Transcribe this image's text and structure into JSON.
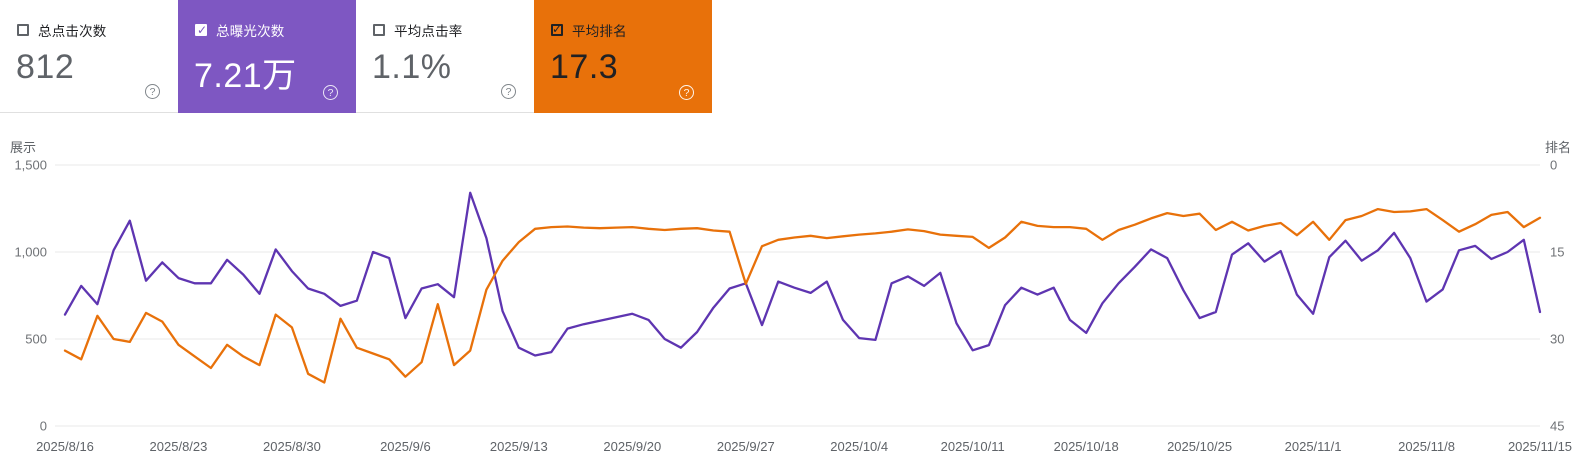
{
  "cards": [
    {
      "label": "总点击次数",
      "value": "812",
      "checked": false,
      "theme": "white"
    },
    {
      "label": "总曝光次数",
      "value": "7.21万",
      "checked": true,
      "theme": "purple",
      "color": "#7e57c2"
    },
    {
      "label": "平均点击率",
      "value": "1.1%",
      "checked": false,
      "theme": "white"
    },
    {
      "label": "平均排名",
      "value": "17.3",
      "checked": true,
      "theme": "orange",
      "color": "#e8710a"
    }
  ],
  "help_glyph": "?",
  "chart_data": {
    "type": "line",
    "title": "",
    "left_axis": {
      "title": "展示",
      "ticks": [
        "1,500",
        "1,000",
        "500",
        "0"
      ],
      "range": [
        0,
        1500
      ]
    },
    "right_axis": {
      "title": "排名",
      "ticks": [
        "0",
        "15",
        "30",
        "45"
      ],
      "range": [
        0,
        45
      ],
      "inverted": true
    },
    "grid": true,
    "legend_position": "none",
    "x_tick_labels": [
      "2025/8/16",
      "2025/8/23",
      "2025/8/30",
      "2025/9/6",
      "2025/9/13",
      "2025/9/20",
      "2025/9/27",
      "2025/10/4",
      "2025/10/11",
      "2025/10/18",
      "2025/10/25",
      "2025/11/1",
      "2025/11/8",
      "2025/11/15"
    ],
    "dates": [
      "2025/8/16",
      "2025/8/17",
      "2025/8/18",
      "2025/8/19",
      "2025/8/20",
      "2025/8/21",
      "2025/8/22",
      "2025/8/23",
      "2025/8/24",
      "2025/8/25",
      "2025/8/26",
      "2025/8/27",
      "2025/8/28",
      "2025/8/29",
      "2025/8/30",
      "2025/8/31",
      "2025/9/1",
      "2025/9/2",
      "2025/9/3",
      "2025/9/4",
      "2025/9/5",
      "2025/9/6",
      "2025/9/7",
      "2025/9/8",
      "2025/9/9",
      "2025/9/10",
      "2025/9/11",
      "2025/9/12",
      "2025/9/13",
      "2025/9/14",
      "2025/9/15",
      "2025/9/16",
      "2025/9/17",
      "2025/9/18",
      "2025/9/19",
      "2025/9/20",
      "2025/9/21",
      "2025/9/22",
      "2025/9/23",
      "2025/9/24",
      "2025/9/25",
      "2025/9/26",
      "2025/9/27",
      "2025/9/28",
      "2025/9/29",
      "2025/9/30",
      "2025/10/1",
      "2025/10/2",
      "2025/10/3",
      "2025/10/4",
      "2025/10/5",
      "2025/10/6",
      "2025/10/7",
      "2025/10/8",
      "2025/10/9",
      "2025/10/10",
      "2025/10/11",
      "2025/10/12",
      "2025/10/13",
      "2025/10/14",
      "2025/10/15",
      "2025/10/16",
      "2025/10/17",
      "2025/10/18",
      "2025/10/19",
      "2025/10/20",
      "2025/10/21",
      "2025/10/22",
      "2025/10/23",
      "2025/10/24",
      "2025/10/25",
      "2025/10/26",
      "2025/10/27",
      "2025/10/28",
      "2025/10/29",
      "2025/10/30",
      "2025/10/31",
      "2025/11/1",
      "2025/11/2",
      "2025/11/3",
      "2025/11/4",
      "2025/11/5",
      "2025/11/6",
      "2025/11/7",
      "2025/11/8",
      "2025/11/9",
      "2025/11/10",
      "2025/11/11",
      "2025/11/12",
      "2025/11/13",
      "2025/11/14",
      "2025/11/15"
    ],
    "series": [
      {
        "name": "总曝光次数",
        "axis": "left",
        "color": "#5e35b1",
        "values": [
          640,
          805,
          700,
          1010,
          1180,
          835,
          940,
          850,
          820,
          820,
          955,
          870,
          760,
          1015,
          890,
          790,
          760,
          690,
          720,
          1000,
          965,
          620,
          790,
          815,
          740,
          1340,
          1080,
          660,
          450,
          405,
          425,
          560,
          585,
          605,
          625,
          645,
          610,
          500,
          450,
          540,
          680,
          790,
          820,
          580,
          830,
          795,
          765,
          830,
          610,
          505,
          495,
          820,
          860,
          805,
          880,
          590,
          435,
          465,
          695,
          795,
          755,
          795,
          610,
          535,
          705,
          820,
          915,
          1015,
          965,
          780,
          620,
          655,
          985,
          1050,
          945,
          1005,
          755,
          645,
          970,
          1065,
          950,
          1010,
          1110,
          965,
          715,
          785,
          1010,
          1035,
          960,
          1000,
          1070,
          655
        ]
      },
      {
        "name": "平均排名",
        "axis": "right",
        "color": "#e8710a",
        "values": [
          32,
          33.5,
          26,
          30,
          30.5,
          25.5,
          27,
          31,
          33,
          35,
          31,
          33,
          34.5,
          25.8,
          28,
          36,
          37.5,
          26.5,
          31.5,
          32.5,
          33.5,
          36.5,
          34,
          24,
          34.5,
          32,
          21.5,
          16.5,
          13.3,
          11,
          10.7,
          10.6,
          10.8,
          10.9,
          10.8,
          10.7,
          11,
          11.2,
          11,
          10.9,
          11.3,
          11.5,
          20.5,
          14,
          12.9,
          12.5,
          12.2,
          12.6,
          12.3,
          12,
          11.8,
          11.5,
          11.1,
          11.4,
          12,
          12.2,
          12.4,
          14.3,
          12.5,
          9.8,
          10.5,
          10.7,
          10.7,
          11,
          12.9,
          11.2,
          10.3,
          9.2,
          8.3,
          8.8,
          8.4,
          11.2,
          9.8,
          11.3,
          10.5,
          10,
          12.1,
          9.8,
          12.9,
          9.5,
          8.8,
          7.6,
          8.1,
          8,
          7.6,
          9.5,
          11.5,
          10.2,
          8.6,
          8.1,
          10.7,
          9.1
        ]
      }
    ]
  }
}
